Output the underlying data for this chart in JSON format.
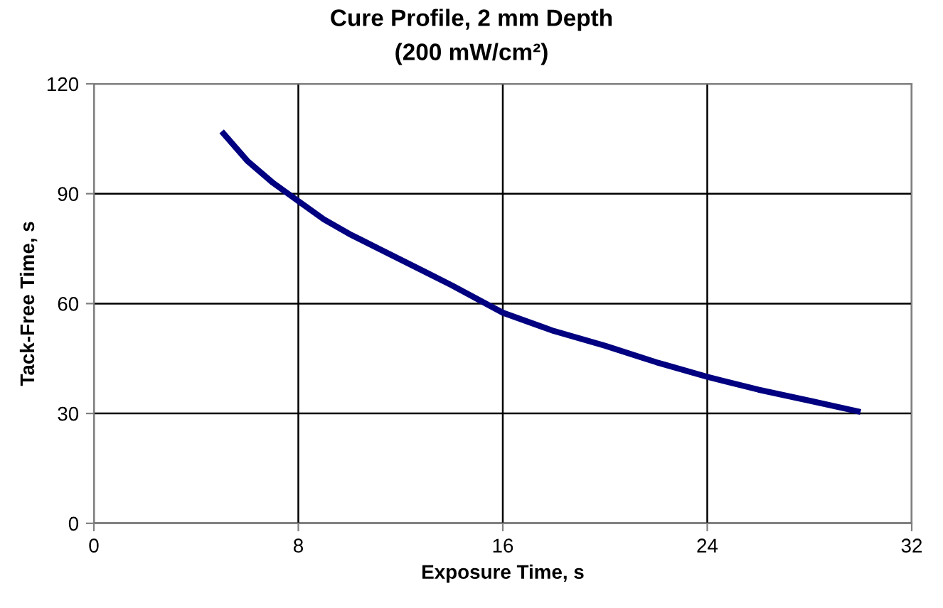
{
  "chart_data": {
    "type": "line",
    "title": "Cure Profile, 2 mm Depth",
    "subtitle": "(200 mW/cm²)",
    "xlabel": "Exposure Time, s",
    "ylabel": "Tack-Free Time, s",
    "series": [
      {
        "color": "#000080",
        "x": [
          5,
          6,
          7,
          8,
          9,
          10,
          11,
          12,
          13,
          14,
          16,
          18,
          20,
          22,
          24,
          26,
          28,
          30
        ],
        "values": [
          107,
          99,
          93,
          88,
          83,
          79,
          75.5,
          72,
          68.5,
          65,
          57.5,
          52.5,
          48.5,
          44,
          40,
          36.5,
          33.5,
          30.4
        ]
      }
    ],
    "xlim": [
      0,
      32
    ],
    "xticks": [
      0,
      8,
      16,
      24,
      32
    ],
    "ylim": [
      0,
      120
    ],
    "yticks": [
      0,
      30,
      60,
      90,
      120
    ],
    "grid": true,
    "marker": "none",
    "line_style": "solid",
    "legend": false
  }
}
